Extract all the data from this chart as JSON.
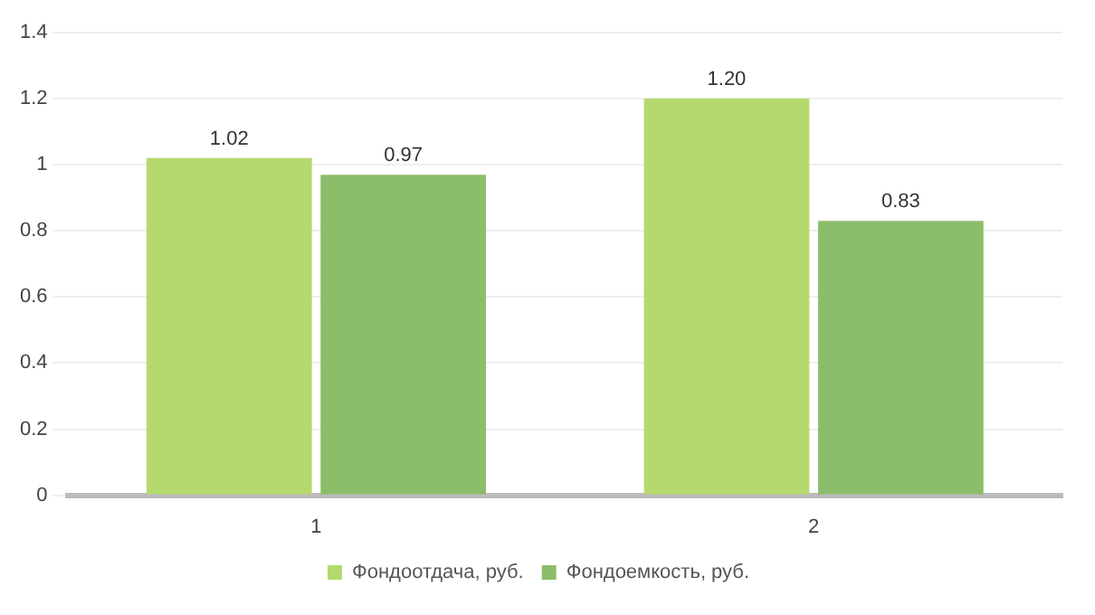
{
  "chart_data": {
    "type": "bar",
    "categories": [
      "1",
      "2"
    ],
    "series": [
      {
        "name": "Фондоотдача, руб.",
        "color": "#b5d96e",
        "values": [
          1.02,
          1.2
        ],
        "value_labels": [
          "1.02",
          "1.20"
        ]
      },
      {
        "name": "Фондоемкость, руб.",
        "color": "#8cbd6b",
        "values": [
          0.97,
          0.83
        ],
        "value_labels": [
          "0.97",
          "0.83"
        ]
      }
    ],
    "ylim": [
      0,
      1.4
    ],
    "yticks": [
      0,
      0.2,
      0.4,
      0.6,
      0.8,
      1,
      1.2,
      1.4
    ],
    "grid": "y",
    "legend": "bottom"
  }
}
